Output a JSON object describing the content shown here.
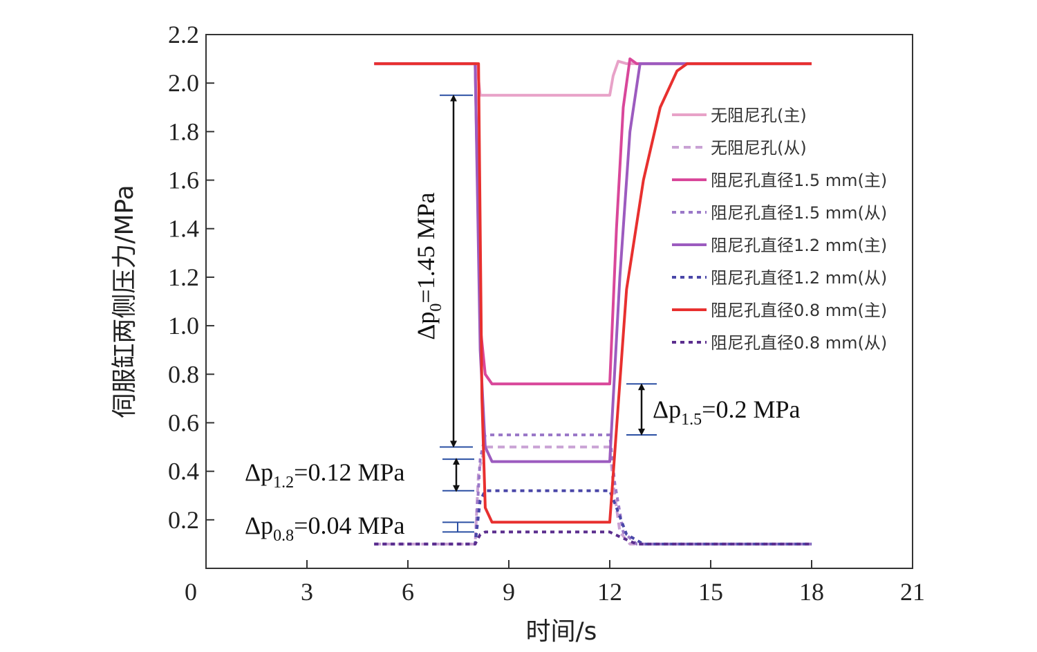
{
  "chart_data": {
    "type": "line",
    "xlabel": "时间/s",
    "ylabel": "伺服缸两侧压力/MPa",
    "xlim": [
      0,
      21
    ],
    "ylim": [
      0,
      2.2
    ],
    "xticks": [
      "0",
      "3",
      "6",
      "9",
      "12",
      "15",
      "18",
      "21"
    ],
    "yticks": [
      "0.2",
      "0.4",
      "0.6",
      "0.8",
      "1.0",
      "1.2",
      "1.4",
      "1.6",
      "1.8",
      "2.0",
      "2.2"
    ],
    "xtick_values": [
      0,
      3,
      6,
      9,
      12,
      15,
      18,
      21
    ],
    "ytick_values": [
      0.2,
      0.4,
      0.6,
      0.8,
      1.0,
      1.2,
      1.4,
      1.6,
      1.8,
      2.0,
      2.2
    ],
    "legend_position": "right",
    "series": [
      {
        "name": "无阻尼孔(主)",
        "color": "#e8a2c8",
        "dash": "solid",
        "x": [
          5,
          8.05,
          8.15,
          12.0,
          12.1,
          12.25,
          12.5,
          18
        ],
        "y": [
          2.08,
          2.08,
          1.95,
          1.95,
          2.03,
          2.09,
          2.08,
          2.08
        ]
      },
      {
        "name": "无阻尼孔(从)",
        "color": "#c9a2d4",
        "dash": "dashed",
        "x": [
          5,
          8.0,
          8.1,
          8.3,
          12.0,
          12.1,
          12.3,
          12.6,
          18
        ],
        "y": [
          0.1,
          0.1,
          0.4,
          0.5,
          0.5,
          0.35,
          0.15,
          0.1,
          0.1
        ]
      },
      {
        "name": "阻尼孔直径1.5 mm(主)",
        "color": "#d9479a",
        "dash": "solid",
        "x": [
          5,
          8.0,
          8.15,
          8.3,
          8.5,
          12.0,
          12.2,
          12.4,
          12.6,
          12.8,
          18
        ],
        "y": [
          2.08,
          2.08,
          1.0,
          0.8,
          0.76,
          0.76,
          1.4,
          1.9,
          2.1,
          2.08,
          2.08
        ]
      },
      {
        "name": "阻尼孔直径1.5 mm(从)",
        "color": "#9a78c8",
        "dash": "dotted",
        "x": [
          5,
          8.0,
          8.15,
          8.3,
          12.0,
          12.15,
          12.4,
          12.8,
          18
        ],
        "y": [
          0.1,
          0.1,
          0.45,
          0.55,
          0.55,
          0.35,
          0.15,
          0.1,
          0.1
        ]
      },
      {
        "name": "阻尼孔直径1.2 mm(主)",
        "color": "#9c5bbf",
        "dash": "solid",
        "x": [
          5,
          8.0,
          8.15,
          8.3,
          8.5,
          12.0,
          12.3,
          12.6,
          12.9,
          13.1,
          18
        ],
        "y": [
          2.08,
          2.08,
          0.9,
          0.5,
          0.44,
          0.44,
          1.2,
          1.8,
          2.08,
          2.08,
          2.08
        ]
      },
      {
        "name": "阻尼孔直径1.2 mm(从)",
        "color": "#4a47a8",
        "dash": "dotted",
        "x": [
          5,
          8.0,
          8.15,
          8.3,
          12.0,
          12.2,
          12.5,
          13.0,
          18
        ],
        "y": [
          0.1,
          0.1,
          0.28,
          0.32,
          0.32,
          0.25,
          0.14,
          0.1,
          0.1
        ]
      },
      {
        "name": "阻尼孔直径0.8 mm(主)",
        "color": "#e8302f",
        "dash": "solid",
        "x": [
          5,
          8.1,
          8.2,
          8.3,
          8.5,
          12.0,
          12.5,
          13.0,
          13.5,
          14.0,
          14.3,
          18
        ],
        "y": [
          2.08,
          2.08,
          0.7,
          0.25,
          0.19,
          0.19,
          1.15,
          1.6,
          1.9,
          2.05,
          2.08,
          2.08
        ]
      },
      {
        "name": "阻尼孔直径0.8 mm(从)",
        "color": "#5b2e8e",
        "dash": "dotted",
        "x": [
          5,
          8.0,
          8.15,
          8.3,
          12.0,
          12.3,
          12.8,
          13.3,
          18
        ],
        "y": [
          0.1,
          0.1,
          0.14,
          0.15,
          0.15,
          0.13,
          0.1,
          0.1,
          0.1
        ]
      }
    ],
    "annotations": [
      {
        "base": "Δp",
        "sub": "0",
        "rest": "=1.45 MPa"
      },
      {
        "base": "Δp",
        "sub": "1.5",
        "rest": "=0.2 MPa"
      },
      {
        "base": "Δp",
        "sub": "1.2",
        "rest": "=0.12 MPa"
      },
      {
        "base": "Δp",
        "sub": "0.8",
        "rest": "=0.04 MPa"
      }
    ]
  }
}
